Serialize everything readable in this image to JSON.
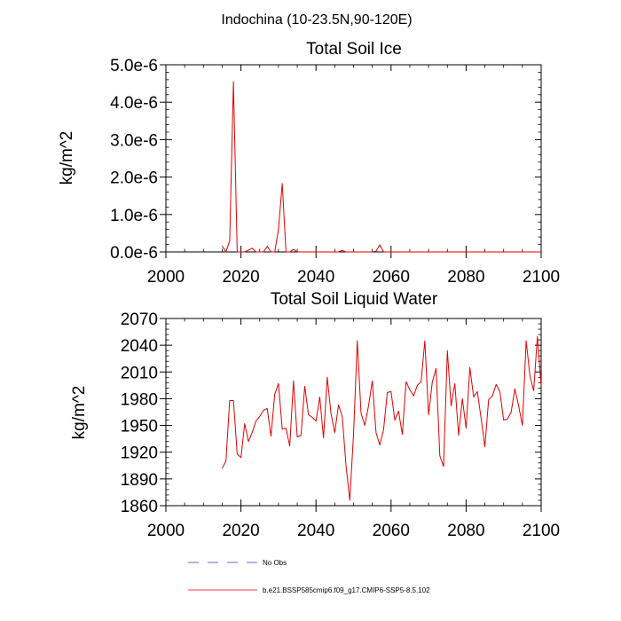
{
  "figure": {
    "title": "Indochina (10-23.5N,90-120E)",
    "legend": [
      {
        "label": "No Obs",
        "color": "#3b3bb3",
        "dash": true
      },
      {
        "label": "b.e21.BSSP585cmip6.f09_g17.CMIP6-SSP5-8.5.102",
        "color": "#e00000",
        "dash": false
      }
    ]
  },
  "chart_data": [
    {
      "type": "line",
      "title": "Total Soil Ice",
      "xlabel": "",
      "ylabel": "kg/m^2",
      "xlim": [
        2000,
        2100
      ],
      "ylim": [
        0,
        5e-06
      ],
      "xticks": [
        2000,
        2020,
        2040,
        2060,
        2080,
        2100
      ],
      "xtick_labels": [
        "2000",
        "2020",
        "2040",
        "2060",
        "2080",
        "2100"
      ],
      "yticks": [
        0,
        1e-06,
        2e-06,
        3e-06,
        4e-06,
        5e-06
      ],
      "ytick_labels": [
        "0.0e-6",
        "1.0e-6",
        "2.0e-6",
        "3.0e-6",
        "4.0e-6",
        "5.0e-6"
      ],
      "grid": false,
      "series": [
        {
          "color": "#e00000",
          "x": [
            2015,
            2016,
            2017,
            2018,
            2019,
            2020,
            2021,
            2022,
            2023,
            2024,
            2025,
            2026,
            2027,
            2028,
            2029,
            2030,
            2031,
            2032,
            2033,
            2034,
            2035,
            2036,
            2037,
            2038,
            2039,
            2040,
            2041,
            2042,
            2043,
            2044,
            2045,
            2046,
            2047,
            2048,
            2049,
            2050,
            2051,
            2052,
            2053,
            2054,
            2055,
            2056,
            2057,
            2058,
            2059,
            2060,
            2061,
            2062,
            2063,
            2064,
            2065,
            2066,
            2067,
            2068,
            2069,
            2070,
            2071,
            2072,
            2073,
            2074,
            2075,
            2076,
            2077,
            2078,
            2079,
            2080,
            2081,
            2082,
            2083,
            2084,
            2085,
            2086,
            2087,
            2088,
            2089,
            2090,
            2091,
            2092,
            2093,
            2094,
            2095,
            2096,
            2097,
            2098,
            2099,
            2100
          ],
          "y": [
            1.6e-07,
            0,
            3e-07,
            4.55e-06,
            0,
            0,
            0,
            5e-08,
            1e-07,
            0,
            0,
            0,
            1.5e-07,
            0,
            0,
            6e-07,
            1.83e-06,
            0,
            0,
            7e-08,
            0,
            0,
            0,
            0,
            0,
            0,
            0,
            0,
            0,
            0,
            0,
            0,
            4e-08,
            0,
            0,
            0,
            0,
            0,
            0,
            0,
            0,
            2e-08,
            1.9e-07,
            0,
            0,
            0,
            0,
            0,
            0,
            0,
            0,
            0,
            0,
            0,
            0,
            0,
            0,
            0,
            0,
            0,
            0,
            0,
            0,
            0,
            0,
            0,
            0,
            0,
            0,
            0,
            0,
            0,
            0,
            0,
            0,
            0,
            0,
            0,
            0,
            0,
            0,
            0,
            0,
            0,
            0,
            0
          ]
        }
      ]
    },
    {
      "type": "line",
      "title": "Total Soil Liquid Water",
      "xlabel": "",
      "ylabel": "kg/m^2",
      "xlim": [
        2000,
        2100
      ],
      "ylim": [
        1860,
        2070
      ],
      "xticks": [
        2000,
        2020,
        2040,
        2060,
        2080,
        2100
      ],
      "xtick_labels": [
        "2000",
        "2020",
        "2040",
        "2060",
        "2080",
        "2100"
      ],
      "yticks": [
        1860,
        1890,
        1920,
        1950,
        1980,
        2010,
        2040,
        2070
      ],
      "ytick_labels": [
        "1860",
        "1890",
        "1920",
        "1950",
        "1980",
        "2010",
        "2040",
        "2070"
      ],
      "grid": false,
      "series": [
        {
          "color": "#e00000",
          "x": [
            2015,
            2016,
            2017,
            2018,
            2019,
            2020,
            2021,
            2022,
            2023,
            2024,
            2025,
            2026,
            2027,
            2028,
            2029,
            2030,
            2031,
            2032,
            2033,
            2034,
            2035,
            2036,
            2037,
            2038,
            2039,
            2040,
            2041,
            2042,
            2043,
            2044,
            2045,
            2046,
            2047,
            2048,
            2049,
            2050,
            2051,
            2052,
            2053,
            2054,
            2055,
            2056,
            2057,
            2058,
            2059,
            2060,
            2061,
            2062,
            2063,
            2064,
            2065,
            2066,
            2067,
            2068,
            2069,
            2070,
            2071,
            2072,
            2073,
            2074,
            2075,
            2076,
            2077,
            2078,
            2079,
            2080,
            2081,
            2082,
            2083,
            2084,
            2085,
            2086,
            2087,
            2088,
            2089,
            2090,
            2091,
            2092,
            2093,
            2094,
            2095,
            2096,
            2097,
            2098,
            2099,
            2100
          ],
          "y": [
            1902,
            1910,
            1978,
            1978,
            1918,
            1914,
            1952,
            1932,
            1942,
            1955,
            1960,
            1967,
            1969,
            1938,
            1985,
            1997,
            1946,
            1947,
            1927,
            2000,
            1937,
            1939,
            1994,
            1962,
            1959,
            1955,
            1982,
            1936,
            2004,
            1963,
            1942,
            1973,
            1960,
            1905,
            1866,
            1940,
            2045,
            1964,
            1950,
            1972,
            2000,
            1942,
            1928,
            1945,
            1987,
            1988,
            1956,
            1966,
            1940,
            1999,
            1990,
            1983,
            1995,
            1999,
            2045,
            1962,
            1999,
            2014,
            1916,
            1904,
            2034,
            1972,
            1997,
            1939,
            1980,
            1947,
            2015,
            1982,
            1988,
            1958,
            1926,
            1979,
            1983,
            1996,
            1988,
            1956,
            1957,
            1965,
            1991,
            1972,
            1950,
            2045,
            2006,
            1989,
            2050,
            1994
          ]
        }
      ]
    }
  ]
}
